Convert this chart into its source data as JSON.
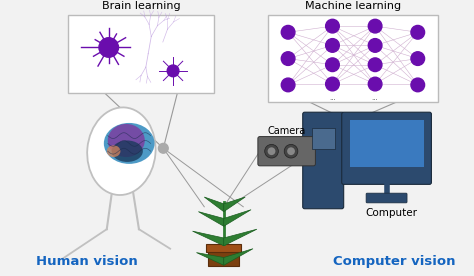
{
  "bg_color": "#f2f2f2",
  "title_left": "Brain learning",
  "title_right": "Machine learning",
  "label_left": "Human vision",
  "label_right": "Computer vision",
  "label_camera": "Camera",
  "label_computer": "Computer",
  "label_color": "#1565c0",
  "line_color": "#999999",
  "node_color": "#6a0dad",
  "neuron_color": "#6a0dad",
  "neuron_color_light": "#c8a8e8",
  "brain_blue": "#3a8fc0",
  "brain_purple": "#7b3fa0",
  "brain_dark": "#1a3a5c",
  "brain_orange": "#d4845a",
  "plant_green": "#2e7d32",
  "plant_pot": "#7b4010",
  "camera_color": "#666666",
  "tower_color": "#2c4a6e",
  "tower_panel": "#4a6a8e",
  "monitor_frame": "#2c4a6e",
  "monitor_screen": "#3a7abf",
  "monitor_stand": "#2c4a6e"
}
